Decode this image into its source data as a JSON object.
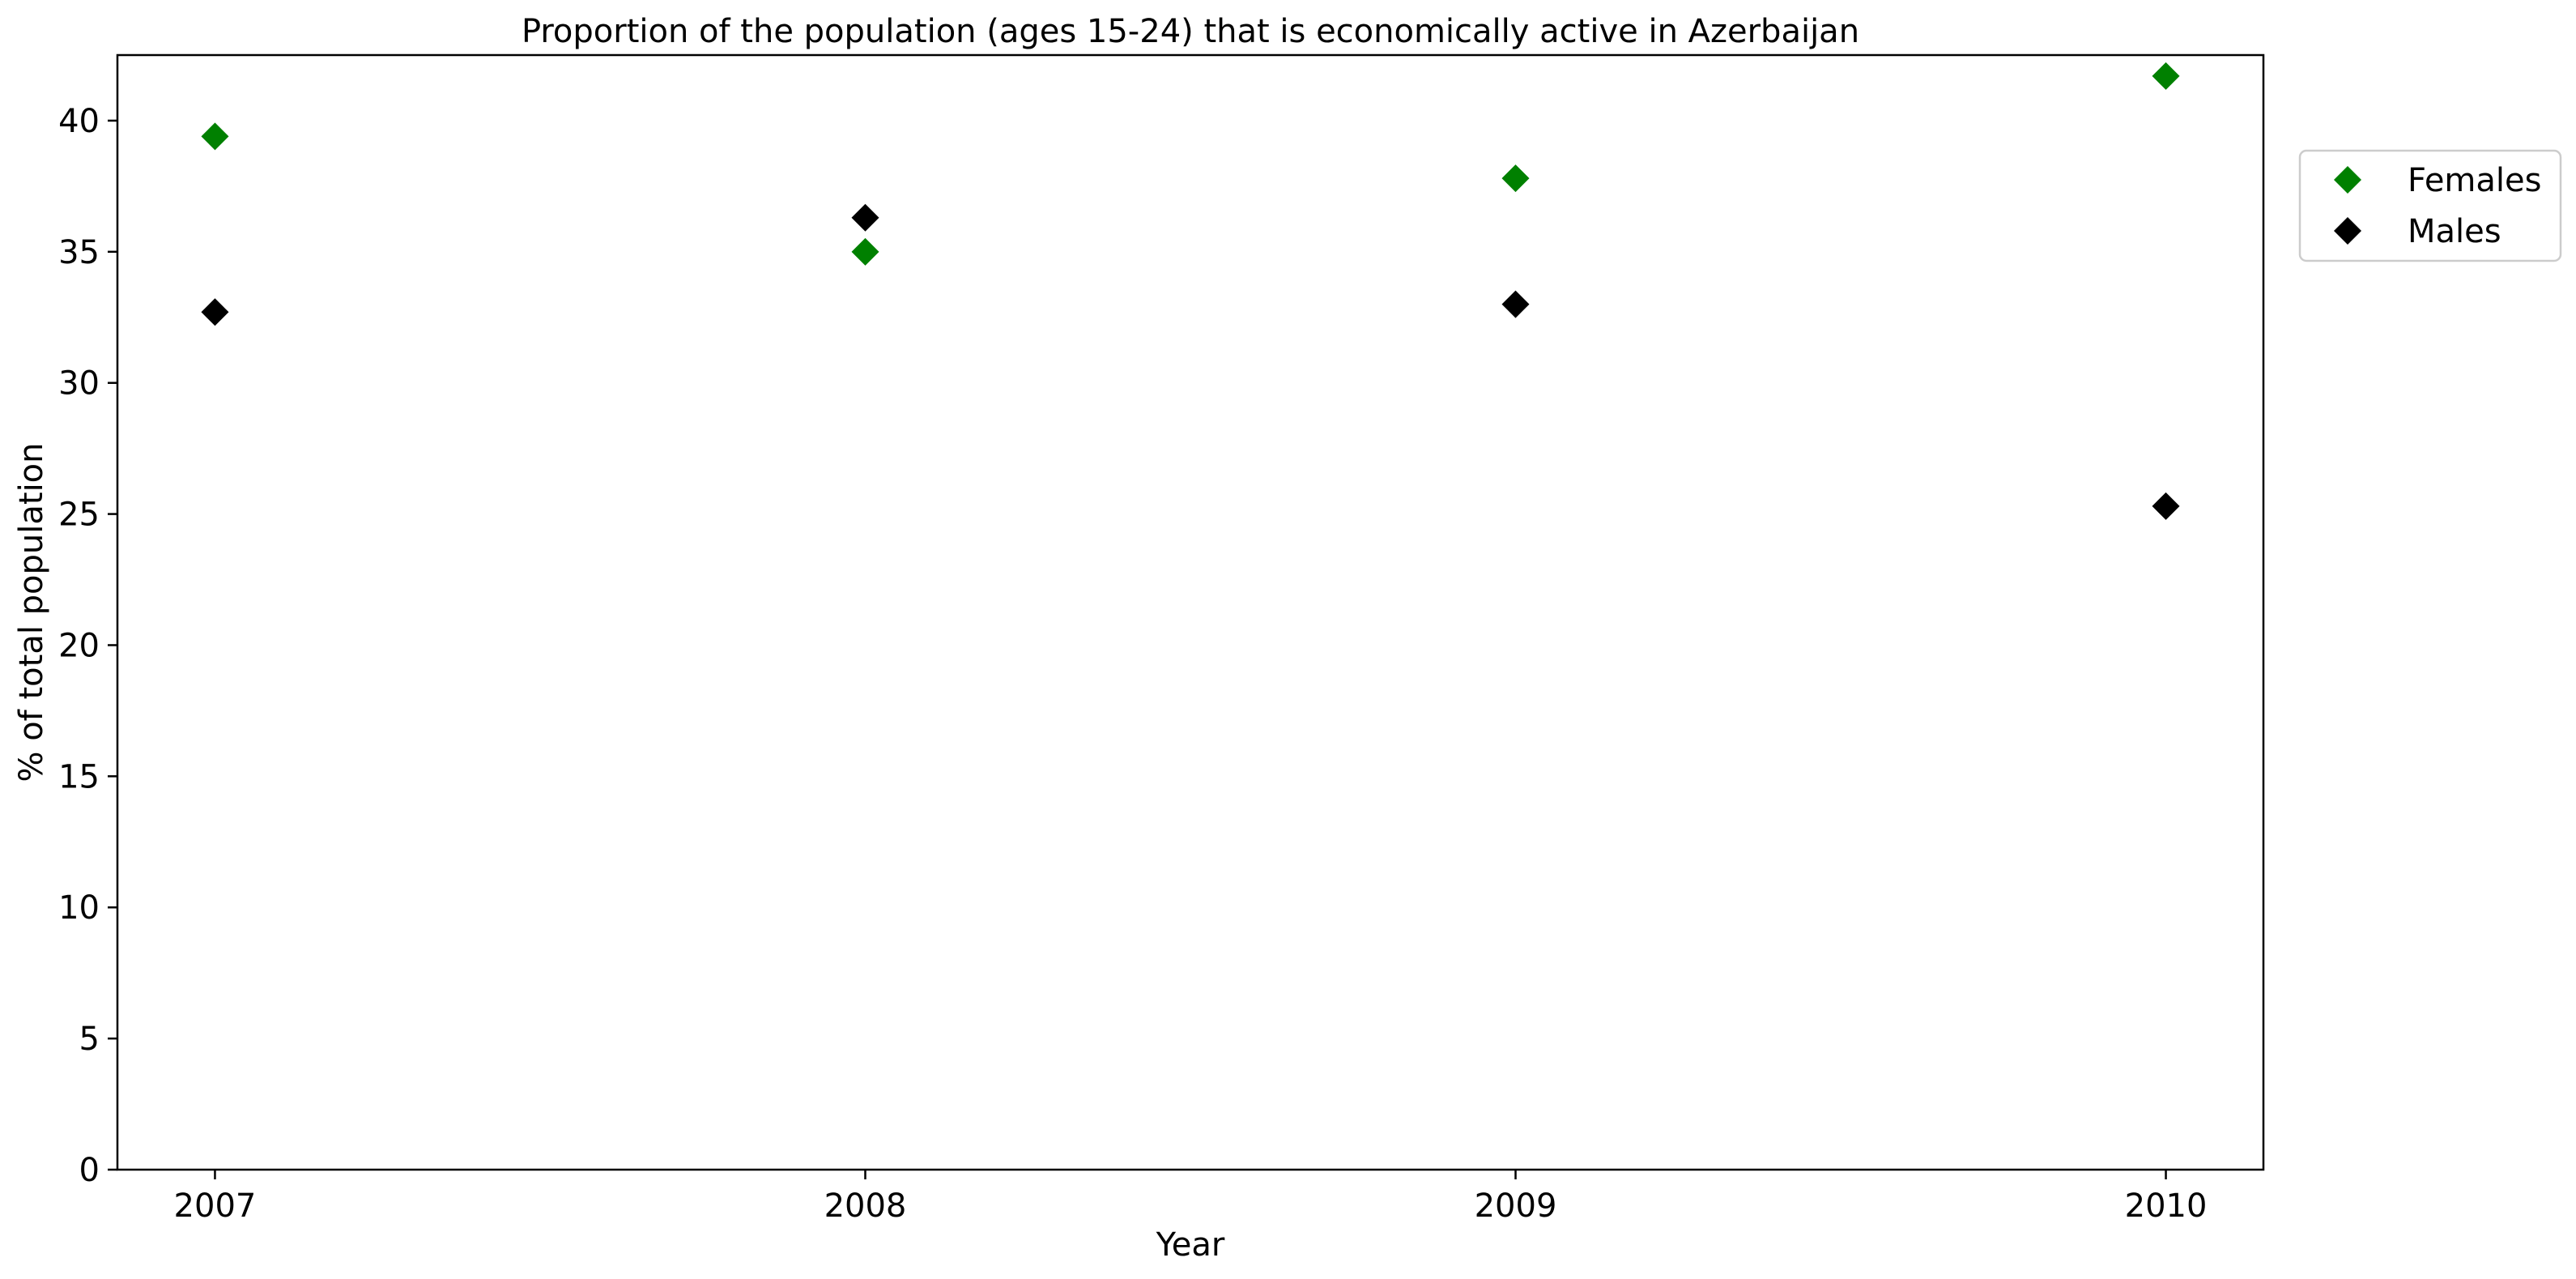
{
  "chart_data": {
    "type": "scatter",
    "title": "Proportion of the population (ages 15-24) that is economically active in Azerbaijan",
    "xlabel": "Year",
    "ylabel": "% of total population",
    "x": [
      2007,
      2008,
      2009,
      2010
    ],
    "x_tick_labels": [
      "2007",
      "2008",
      "2009",
      "2010"
    ],
    "xlim": [
      2006.85,
      2010.15
    ],
    "ylim": [
      0,
      42.5
    ],
    "y_ticks": [
      0,
      5,
      10,
      15,
      20,
      25,
      30,
      35,
      40
    ],
    "grid": false,
    "legend_position": "outside-right-top",
    "marker": "diamond",
    "series": [
      {
        "name": "Females",
        "color": "#008000",
        "values": [
          39.4,
          35.0,
          37.8,
          41.7
        ]
      },
      {
        "name": "Males",
        "color": "#000000",
        "values": [
          32.7,
          36.3,
          33.0,
          25.3
        ]
      }
    ]
  }
}
